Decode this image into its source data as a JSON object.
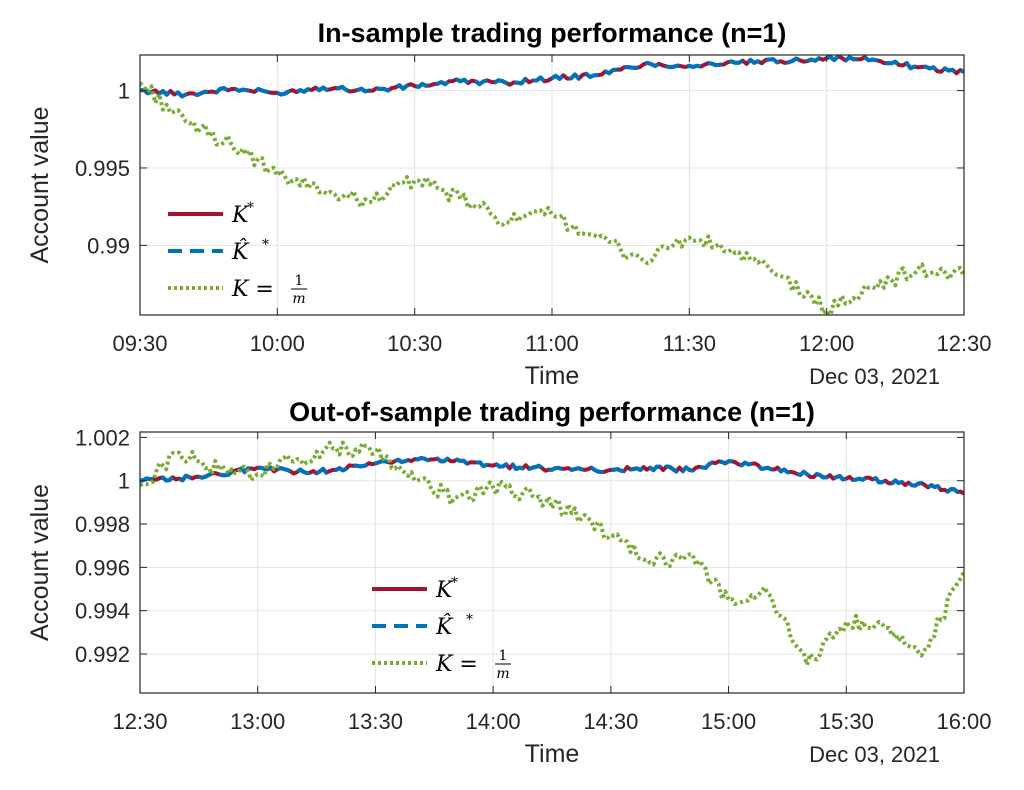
{
  "chart_data": [
    {
      "type": "line",
      "title": "In-sample trading performance (n=1)",
      "xlabel": "Time",
      "ylabel": "Account value",
      "date_label": "Dec 03, 2021",
      "x_ticks": [
        "09:30",
        "10:00",
        "10:30",
        "11:00",
        "11:30",
        "12:00",
        "12:30"
      ],
      "y_ticks": [
        "1",
        "0.995",
        "0.99"
      ],
      "y_tick_values": [
        1,
        0.995,
        0.99
      ],
      "ylim": [
        0.9855,
        1.0023
      ],
      "xlim": [
        "09:30",
        "12:30"
      ],
      "grid": true,
      "legend_position": "bottom-left",
      "x": [
        "09:30",
        "09:40",
        "09:50",
        "10:00",
        "10:10",
        "10:20",
        "10:30",
        "10:40",
        "10:50",
        "11:00",
        "11:10",
        "11:20",
        "11:30",
        "11:40",
        "11:50",
        "12:00",
        "12:10",
        "12:20",
        "12:30"
      ],
      "series": [
        {
          "name": "K*",
          "legend_main": "K",
          "legend_sup": "*",
          "color": "#a2142f",
          "dash": "solid",
          "values": [
            1.0,
            0.99975,
            1.0001,
            0.99985,
            1.0002,
            1.0,
            1.0003,
            1.0006,
            1.0005,
            1.0008,
            1.001,
            1.0017,
            1.0016,
            1.0018,
            1.0019,
            1.0021,
            1.002,
            1.0015,
            1.0012
          ]
        },
        {
          "name": "K̂*",
          "legend_main": "K̂",
          "legend_sup": "*",
          "color": "#0072bd",
          "dash": "dashed",
          "values": [
            1.0,
            0.99975,
            1.0001,
            0.99985,
            1.0002,
            1.0,
            1.0003,
            1.0006,
            1.0005,
            1.0008,
            1.001,
            1.0017,
            1.0016,
            1.0018,
            1.0019,
            1.0021,
            1.002,
            1.0015,
            1.0012
          ]
        },
        {
          "name": "K = 1/m",
          "legend_main": "K =",
          "legend_num": "1",
          "legend_den": "m",
          "color": "#77ac30",
          "dash": "dotted",
          "values": [
            1.0005,
            0.998,
            0.9965,
            0.9945,
            0.9935,
            0.9928,
            0.9942,
            0.993,
            0.9915,
            0.992,
            0.9905,
            0.989,
            0.9905,
            0.9895,
            0.988,
            0.9858,
            0.9873,
            0.9885,
            0.988
          ]
        }
      ]
    },
    {
      "type": "line",
      "title": "Out-of-sample trading performance (n=1)",
      "xlabel": "Time",
      "ylabel": "Account value",
      "date_label": "Dec 03, 2021",
      "x_ticks": [
        "12:30",
        "13:00",
        "13:30",
        "14:00",
        "14:30",
        "15:00",
        "15:30",
        "16:00"
      ],
      "y_ticks": [
        "1.002",
        "1",
        "0.998",
        "0.996",
        "0.994",
        "0.992"
      ],
      "y_tick_values": [
        1.002,
        1,
        0.998,
        0.996,
        0.994,
        0.992
      ],
      "ylim": [
        0.9902,
        1.00225
      ],
      "xlim": [
        "12:30",
        "16:00"
      ],
      "grid": true,
      "legend_position": "bottom-center",
      "x": [
        "12:30",
        "12:40",
        "12:50",
        "13:00",
        "13:10",
        "13:20",
        "13:30",
        "13:40",
        "13:50",
        "14:00",
        "14:10",
        "14:20",
        "14:30",
        "14:40",
        "14:50",
        "15:00",
        "15:10",
        "15:20",
        "15:30",
        "15:40",
        "15:50",
        "16:00"
      ],
      "series": [
        {
          "name": "K*",
          "legend_main": "K",
          "legend_sup": "*",
          "color": "#a2142f",
          "dash": "solid",
          "values": [
            1.0,
            1.0001,
            1.0003,
            1.0006,
            1.0004,
            1.0005,
            1.0008,
            1.001,
            1.0009,
            1.0007,
            1.0006,
            1.0005,
            1.0005,
            1.0006,
            1.0005,
            1.0009,
            1.0006,
            1.0003,
            1.0001,
            1.0,
            0.9998,
            0.9994
          ]
        },
        {
          "name": "K̂*",
          "legend_main": "K̂",
          "legend_sup": "*",
          "color": "#0072bd",
          "dash": "dashed",
          "values": [
            1.0,
            1.0001,
            1.0003,
            1.0006,
            1.0004,
            1.0005,
            1.0008,
            1.001,
            1.0009,
            1.0007,
            1.0006,
            1.0005,
            1.0005,
            1.0006,
            1.0005,
            1.0009,
            1.0006,
            1.0003,
            1.0001,
            1.0,
            0.9998,
            0.9994
          ]
        },
        {
          "name": "K = 1/m",
          "legend_main": "K =",
          "legend_num": "1",
          "legend_den": "m",
          "color": "#77ac30",
          "dash": "dotted",
          "values": [
            0.9998,
            1.0013,
            1.0005,
            1.0003,
            1.001,
            1.0015,
            1.0013,
            1.0,
            0.9992,
            0.9997,
            0.9993,
            0.9985,
            0.9975,
            0.9962,
            0.9966,
            0.9945,
            0.9948,
            0.9915,
            0.9935,
            0.9932,
            0.9922,
            0.9958
          ]
        }
      ]
    }
  ]
}
